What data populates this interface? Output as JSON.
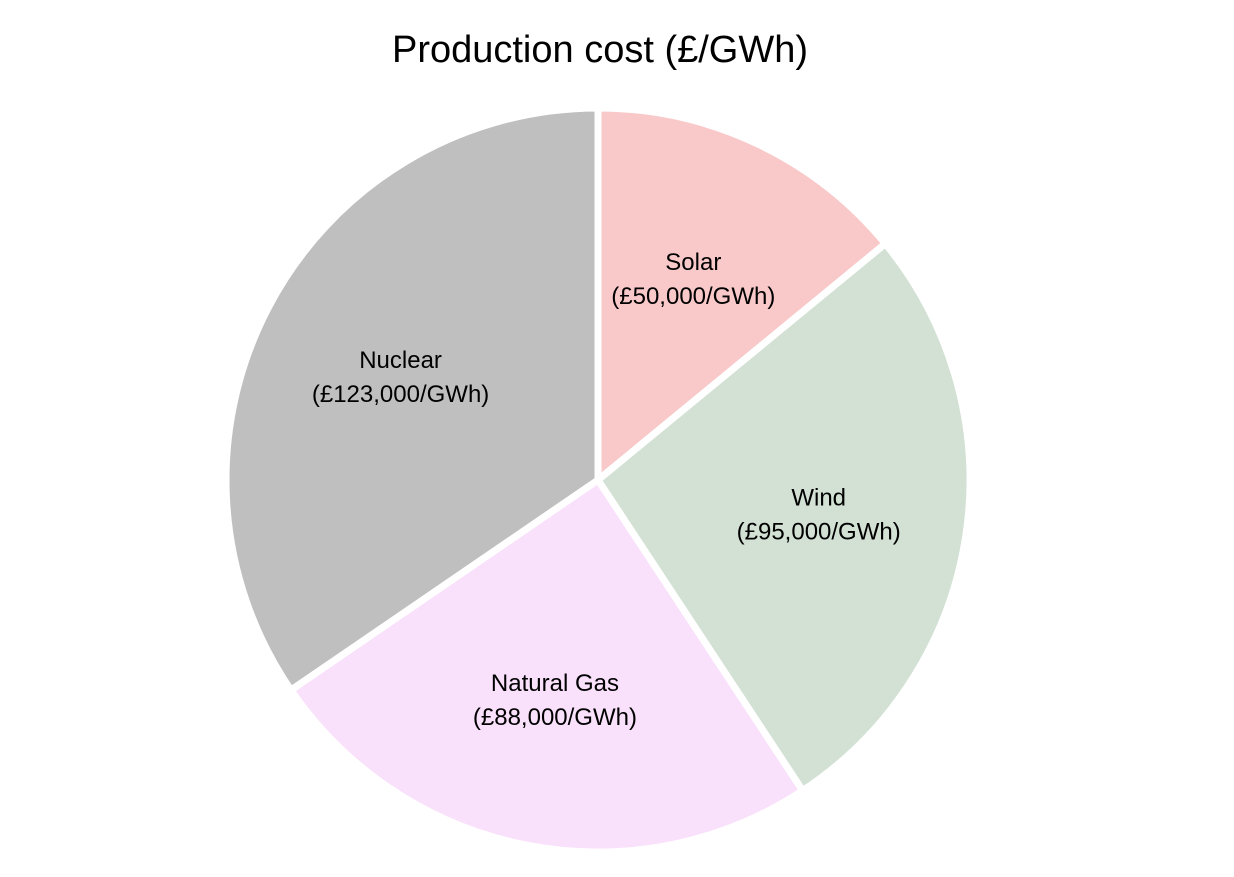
{
  "chart_data": {
    "type": "pie",
    "title": "Production cost (£/GWh)",
    "start_angle_deg": 90,
    "direction": "clockwise",
    "slices": [
      {
        "name": "Solar",
        "value": 50000,
        "value_label": "(£50,000/GWh)",
        "color": "#f9c9ca"
      },
      {
        "name": "Wind",
        "value": 95000,
        "value_label": "(£95,000/GWh)",
        "color": "#d3e1d4"
      },
      {
        "name": "Natural Gas",
        "value": 88000,
        "value_label": "(£88,000/GWh)",
        "color": "#f9e0fb"
      },
      {
        "name": "Nuclear",
        "value": 123000,
        "value_label": "(£123,000/GWh)",
        "color": "#bfbfbf"
      }
    ],
    "separator_color": "#ffffff"
  }
}
